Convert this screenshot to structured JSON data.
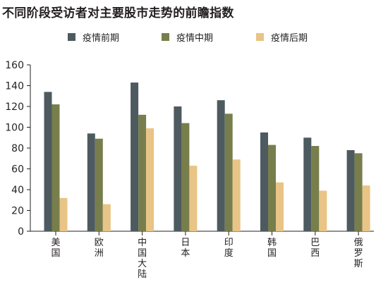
{
  "chart_data": {
    "type": "bar",
    "title": "不同阶段受访者对主要股市走势的前瞻指数",
    "xlabel": "",
    "ylabel": "",
    "ylim": [
      0,
      160
    ],
    "yticks": [
      0,
      20,
      40,
      60,
      80,
      100,
      120,
      140,
      160
    ],
    "grid": false,
    "legend_position": "top",
    "categories": [
      "美国",
      "欧洲",
      "中国大陆",
      "日本",
      "印度",
      "韩国",
      "巴西",
      "俄罗斯"
    ],
    "series": [
      {
        "name": "疫情前期",
        "color": "#4d5a60",
        "values": [
          134,
          94,
          143,
          120,
          126,
          95,
          90,
          78
        ]
      },
      {
        "name": "疫情中期",
        "color": "#777e4c",
        "values": [
          122,
          89,
          112,
          104,
          113,
          83,
          82,
          75
        ]
      },
      {
        "name": "疫情后期",
        "color": "#e8c486",
        "values": [
          32,
          26,
          99,
          63,
          69,
          47,
          39,
          44
        ]
      }
    ]
  }
}
